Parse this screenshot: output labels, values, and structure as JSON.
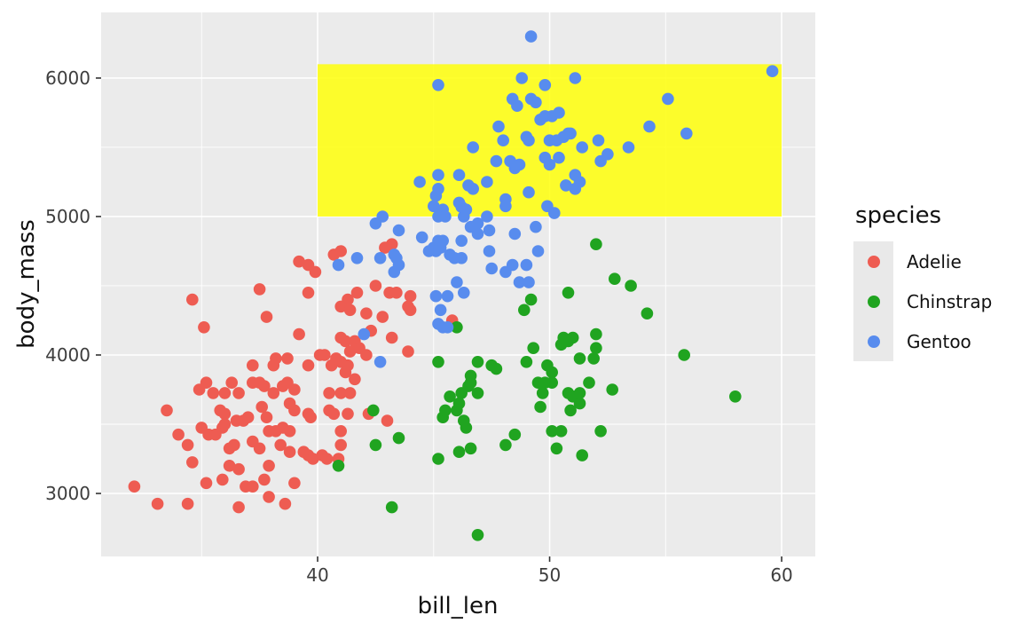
{
  "chart_data": {
    "type": "scatter",
    "title": "",
    "xlabel": "bill_len",
    "ylabel": "body_mass",
    "x_range": [
      30.67,
      61.45
    ],
    "y_range": [
      2545,
      6474
    ],
    "x_ticks_major": [
      40,
      50,
      60
    ],
    "x_ticks_minor": [
      35,
      45,
      55
    ],
    "y_ticks_major": [
      3000,
      4000,
      5000,
      6000
    ],
    "y_ticks_minor": [
      3500,
      4500,
      5500
    ],
    "grid": true,
    "legend_position": "right",
    "colors": {
      "panel_bg": "#EBEBEB",
      "grid": "#FFFFFF",
      "tick": "#333333",
      "tick_label": "#3D3D3D",
      "legend_key_bg": "#E9E9E9",
      "annotation_yellow": "#FFFF00"
    },
    "point_radius": 6.8,
    "annotation_rect": {
      "xmin": 40,
      "xmax": 60,
      "ymin": 5000,
      "ymax": 6100,
      "fill": "#FFFF00",
      "opacity": 0.82
    },
    "legend": {
      "title": "species",
      "entries": [
        "Adelie",
        "Chinstrap",
        "Gentoo"
      ]
    },
    "series": [
      {
        "name": "Adelie",
        "color": "#EE5C52",
        "points": [
          [
            39.2,
            4675
          ],
          [
            39.6,
            4650
          ],
          [
            39.9,
            4600
          ],
          [
            40.7,
            4725
          ],
          [
            41.0,
            4750
          ],
          [
            42.9,
            4775
          ],
          [
            43.2,
            4800
          ],
          [
            37.5,
            4475
          ],
          [
            39.6,
            4450
          ],
          [
            34.6,
            4400
          ],
          [
            42.5,
            4500
          ],
          [
            41.7,
            4450
          ],
          [
            41.3,
            4400
          ],
          [
            41.0,
            4350
          ],
          [
            43.1,
            4450
          ],
          [
            43.4,
            4450
          ],
          [
            44.0,
            4425
          ],
          [
            43.9,
            4350
          ],
          [
            44.0,
            4325
          ],
          [
            45.8,
            4250
          ],
          [
            37.8,
            4275
          ],
          [
            41.4,
            4325
          ],
          [
            42.1,
            4300
          ],
          [
            42.8,
            4275
          ],
          [
            35.1,
            4200
          ],
          [
            39.2,
            4150
          ],
          [
            42.3,
            4175
          ],
          [
            43.2,
            4125
          ],
          [
            43.9,
            4025
          ],
          [
            41.0,
            4125
          ],
          [
            41.2,
            4100
          ],
          [
            41.6,
            4100
          ],
          [
            41.4,
            4025
          ],
          [
            41.8,
            4050
          ],
          [
            42.1,
            4000
          ],
          [
            38.2,
            3975
          ],
          [
            38.1,
            3925
          ],
          [
            38.7,
            3975
          ],
          [
            37.2,
            3925
          ],
          [
            39.6,
            3925
          ],
          [
            40.1,
            4000
          ],
          [
            40.3,
            4000
          ],
          [
            40.6,
            3925
          ],
          [
            40.8,
            3975
          ],
          [
            41.0,
            3950
          ],
          [
            41.3,
            3925
          ],
          [
            41.2,
            3875
          ],
          [
            41.6,
            3825
          ],
          [
            34.9,
            3750
          ],
          [
            35.2,
            3800
          ],
          [
            35.5,
            3725
          ],
          [
            36.0,
            3725
          ],
          [
            36.3,
            3800
          ],
          [
            36.6,
            3725
          ],
          [
            37.2,
            3800
          ],
          [
            37.5,
            3800
          ],
          [
            37.7,
            3775
          ],
          [
            38.1,
            3725
          ],
          [
            38.5,
            3775
          ],
          [
            38.7,
            3800
          ],
          [
            39.0,
            3750
          ],
          [
            40.5,
            3725
          ],
          [
            41.0,
            3725
          ],
          [
            41.4,
            3725
          ],
          [
            33.5,
            3600
          ],
          [
            35.8,
            3600
          ],
          [
            36.0,
            3575
          ],
          [
            37.6,
            3625
          ],
          [
            37.8,
            3550
          ],
          [
            38.8,
            3650
          ],
          [
            39.0,
            3600
          ],
          [
            39.6,
            3575
          ],
          [
            39.7,
            3550
          ],
          [
            40.5,
            3600
          ],
          [
            40.7,
            3575
          ],
          [
            41.3,
            3575
          ],
          [
            42.2,
            3575
          ],
          [
            43.0,
            3525
          ],
          [
            35.0,
            3475
          ],
          [
            35.3,
            3425
          ],
          [
            35.6,
            3425
          ],
          [
            35.9,
            3475
          ],
          [
            34.0,
            3425
          ],
          [
            34.4,
            3350
          ],
          [
            34.6,
            3225
          ],
          [
            36.0,
            3500
          ],
          [
            36.4,
            3350
          ],
          [
            36.2,
            3325
          ],
          [
            36.5,
            3525
          ],
          [
            36.8,
            3525
          ],
          [
            37.0,
            3550
          ],
          [
            37.2,
            3375
          ],
          [
            37.5,
            3325
          ],
          [
            37.9,
            3450
          ],
          [
            38.2,
            3450
          ],
          [
            38.5,
            3475
          ],
          [
            38.8,
            3450
          ],
          [
            38.8,
            3300
          ],
          [
            38.4,
            3350
          ],
          [
            39.4,
            3300
          ],
          [
            39.6,
            3275
          ],
          [
            39.8,
            3250
          ],
          [
            40.2,
            3275
          ],
          [
            40.4,
            3250
          ],
          [
            40.9,
            3250
          ],
          [
            41.0,
            3450
          ],
          [
            41.0,
            3350
          ],
          [
            32.1,
            3050
          ],
          [
            35.2,
            3075
          ],
          [
            35.9,
            3100
          ],
          [
            36.2,
            3200
          ],
          [
            36.6,
            3175
          ],
          [
            36.9,
            3050
          ],
          [
            37.2,
            3050
          ],
          [
            37.7,
            3100
          ],
          [
            37.9,
            3200
          ],
          [
            39.0,
            3075
          ],
          [
            33.1,
            2925
          ],
          [
            34.4,
            2925
          ],
          [
            36.6,
            2900
          ],
          [
            37.9,
            2975
          ],
          [
            38.6,
            2925
          ]
        ]
      },
      {
        "name": "Chinstrap",
        "color": "#20A420",
        "points": [
          [
            40.9,
            3200
          ],
          [
            42.4,
            3600
          ],
          [
            42.5,
            3350
          ],
          [
            43.5,
            3400
          ],
          [
            43.2,
            2900
          ],
          [
            46.9,
            2700
          ],
          [
            45.2,
            3250
          ],
          [
            46.1,
            3300
          ],
          [
            46.6,
            3325
          ],
          [
            48.1,
            3350
          ],
          [
            48.5,
            3425
          ],
          [
            50.1,
            3450
          ],
          [
            50.5,
            3450
          ],
          [
            50.3,
            3325
          ],
          [
            51.4,
            3275
          ],
          [
            45.4,
            3550
          ],
          [
            45.5,
            3600
          ],
          [
            45.7,
            3700
          ],
          [
            46.0,
            3600
          ],
          [
            46.1,
            3650
          ],
          [
            46.2,
            3725
          ],
          [
            46.5,
            3775
          ],
          [
            46.6,
            3800
          ],
          [
            46.9,
            3725
          ],
          [
            46.4,
            3475
          ],
          [
            46.3,
            3525
          ],
          [
            49.5,
            3800
          ],
          [
            49.8,
            3800
          ],
          [
            50.1,
            3800
          ],
          [
            49.7,
            3725
          ],
          [
            49.6,
            3625
          ],
          [
            50.8,
            3725
          ],
          [
            51.0,
            3700
          ],
          [
            50.9,
            3600
          ],
          [
            51.7,
            3800
          ],
          [
            51.3,
            3725
          ],
          [
            51.3,
            3650
          ],
          [
            52.7,
            3750
          ],
          [
            58.0,
            3700
          ],
          [
            52.2,
            3450
          ],
          [
            46.9,
            3950
          ],
          [
            45.2,
            3950
          ],
          [
            46.6,
            3850
          ],
          [
            47.5,
            3925
          ],
          [
            47.7,
            3900
          ],
          [
            49.0,
            3950
          ],
          [
            49.9,
            3925
          ],
          [
            50.1,
            3875
          ],
          [
            49.3,
            4050
          ],
          [
            50.5,
            4075
          ],
          [
            50.6,
            4125
          ],
          [
            50.8,
            4100
          ],
          [
            51.0,
            4125
          ],
          [
            52.0,
            4800
          ],
          [
            52.8,
            4550
          ],
          [
            53.5,
            4500
          ],
          [
            54.2,
            4300
          ],
          [
            55.8,
            4000
          ],
          [
            52.0,
            4150
          ],
          [
            52.0,
            4050
          ],
          [
            51.3,
            3975
          ],
          [
            51.9,
            3975
          ],
          [
            46.0,
            4200
          ],
          [
            49.2,
            4400
          ],
          [
            48.9,
            4325
          ],
          [
            50.8,
            4450
          ]
        ]
      },
      {
        "name": "Gentoo",
        "color": "#588CEE",
        "points": [
          [
            49.2,
            6300
          ],
          [
            59.6,
            6050
          ],
          [
            48.8,
            6000
          ],
          [
            51.1,
            6000
          ],
          [
            49.8,
            5950
          ],
          [
            45.2,
            5950
          ],
          [
            48.4,
            5850
          ],
          [
            48.6,
            5800
          ],
          [
            49.2,
            5850
          ],
          [
            49.4,
            5825
          ],
          [
            55.1,
            5850
          ],
          [
            49.6,
            5700
          ],
          [
            49.8,
            5725
          ],
          [
            50.1,
            5725
          ],
          [
            50.4,
            5750
          ],
          [
            47.8,
            5650
          ],
          [
            54.3,
            5650
          ],
          [
            55.9,
            5600
          ],
          [
            48.0,
            5550
          ],
          [
            46.7,
            5500
          ],
          [
            49.0,
            5575
          ],
          [
            49.1,
            5550
          ],
          [
            50.0,
            5550
          ],
          [
            50.3,
            5550
          ],
          [
            50.6,
            5575
          ],
          [
            50.8,
            5600
          ],
          [
            50.9,
            5600
          ],
          [
            52.1,
            5550
          ],
          [
            51.4,
            5500
          ],
          [
            53.4,
            5500
          ],
          [
            52.5,
            5450
          ],
          [
            52.2,
            5400
          ],
          [
            47.7,
            5400
          ],
          [
            48.3,
            5400
          ],
          [
            48.5,
            5350
          ],
          [
            48.7,
            5375
          ],
          [
            49.8,
            5425
          ],
          [
            50.0,
            5375
          ],
          [
            50.4,
            5425
          ],
          [
            44.4,
            5250
          ],
          [
            45.2,
            5300
          ],
          [
            45.2,
            5200
          ],
          [
            46.1,
            5300
          ],
          [
            46.5,
            5225
          ],
          [
            46.7,
            5200
          ],
          [
            47.3,
            5250
          ],
          [
            48.1,
            5125
          ],
          [
            49.1,
            5175
          ],
          [
            46.1,
            5100
          ],
          [
            45.1,
            5150
          ],
          [
            51.1,
            5200
          ],
          [
            50.7,
            5225
          ],
          [
            51.1,
            5300
          ],
          [
            51.3,
            5250
          ],
          [
            42.8,
            5000
          ],
          [
            42.5,
            4950
          ],
          [
            45.0,
            5075
          ],
          [
            45.4,
            5050
          ],
          [
            45.2,
            5000
          ],
          [
            45.5,
            5000
          ],
          [
            46.2,
            5070
          ],
          [
            46.4,
            5050
          ],
          [
            46.3,
            5000
          ],
          [
            48.1,
            5075
          ],
          [
            49.9,
            5075
          ],
          [
            50.2,
            5025
          ],
          [
            43.5,
            4900
          ],
          [
            44.5,
            4850
          ],
          [
            46.6,
            4925
          ],
          [
            46.9,
            4950
          ],
          [
            47.3,
            5000
          ],
          [
            47.4,
            4900
          ],
          [
            46.9,
            4875
          ],
          [
            48.5,
            4875
          ],
          [
            49.4,
            4925
          ],
          [
            49.5,
            4750
          ],
          [
            40.9,
            4650
          ],
          [
            41.7,
            4700
          ],
          [
            42.7,
            4700
          ],
          [
            43.3,
            4725
          ],
          [
            43.4,
            4700
          ],
          [
            43.5,
            4650
          ],
          [
            43.3,
            4600
          ],
          [
            44.8,
            4750
          ],
          [
            45.0,
            4775
          ],
          [
            45.2,
            4825
          ],
          [
            45.4,
            4825
          ],
          [
            45.3,
            4775
          ],
          [
            45.1,
            4750
          ],
          [
            45.7,
            4725
          ],
          [
            45.9,
            4700
          ],
          [
            46.2,
            4700
          ],
          [
            46.2,
            4825
          ],
          [
            47.4,
            4750
          ],
          [
            47.5,
            4625
          ],
          [
            48.1,
            4600
          ],
          [
            48.4,
            4650
          ],
          [
            49.0,
            4650
          ],
          [
            49.1,
            4525
          ],
          [
            48.7,
            4525
          ],
          [
            46.0,
            4525
          ],
          [
            46.3,
            4450
          ],
          [
            45.6,
            4425
          ],
          [
            45.1,
            4425
          ],
          [
            45.3,
            4325
          ],
          [
            45.2,
            4225
          ],
          [
            45.4,
            4200
          ],
          [
            45.6,
            4200
          ],
          [
            42.0,
            4150
          ],
          [
            42.7,
            3950
          ]
        ]
      }
    ]
  }
}
